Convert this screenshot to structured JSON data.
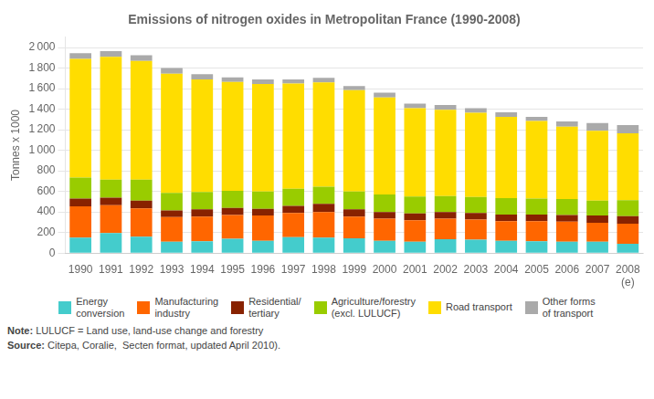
{
  "chart_data": {
    "type": "bar",
    "stacked": true,
    "title": "Emissions of nitrogen oxides in Metropolitan France (1990-2008)",
    "ylabel": "Tonnes x 1000",
    "categories": [
      "1990",
      "1991",
      "1992",
      "1993",
      "1994",
      "1995",
      "1996",
      "1997",
      "1998",
      "1999",
      "2000",
      "2001",
      "2002",
      "2003",
      "2004",
      "2005",
      "2006",
      "2007",
      "2008"
    ],
    "series": [
      {
        "name": "Energy\nconversion",
        "color": "#44CCCC",
        "values": [
          150,
          195,
          160,
          110,
          115,
          140,
          120,
          155,
          150,
          145,
          120,
          110,
          135,
          130,
          120,
          115,
          110,
          110,
          90
        ]
      },
      {
        "name": "Manufacturing\nindustry",
        "color": "#FF6600",
        "values": [
          305,
          270,
          275,
          240,
          240,
          230,
          245,
          235,
          250,
          210,
          215,
          210,
          200,
          195,
          190,
          195,
          195,
          185,
          195
        ]
      },
      {
        "name": "Residential/\ntertiary",
        "color": "#882200",
        "values": [
          75,
          75,
          75,
          65,
          70,
          70,
          65,
          70,
          80,
          70,
          65,
          65,
          65,
          65,
          65,
          65,
          65,
          70,
          75
        ]
      },
      {
        "name": "Agriculture/forestry\n(excl. LULUCF)",
        "color": "#99CC00",
        "values": [
          205,
          175,
          205,
          170,
          170,
          165,
          170,
          165,
          165,
          175,
          170,
          165,
          155,
          155,
          160,
          155,
          155,
          145,
          155
        ]
      },
      {
        "name": "Road transport",
        "color": "#FFDD00",
        "values": [
          1155,
          1195,
          1155,
          1160,
          1095,
          1060,
          1045,
          1025,
          1015,
          985,
          945,
          860,
          840,
          820,
          790,
          755,
          705,
          680,
          650
        ]
      },
      {
        "name": "Other forms\nof transport",
        "color": "#AAAAAA",
        "values": [
          55,
          55,
          55,
          55,
          50,
          45,
          45,
          40,
          45,
          40,
          45,
          45,
          45,
          45,
          45,
          40,
          50,
          75,
          80
        ]
      }
    ],
    "ylim": [
      0,
      2100
    ],
    "yticks": [
      0,
      200,
      400,
      600,
      800,
      {
        "value": 1000,
        "label": "1 000"
      },
      {
        "value": 1200,
        "label": "1 200"
      },
      {
        "value": 1400,
        "label": "1 400"
      },
      {
        "value": 1600,
        "label": "1 600"
      },
      {
        "value": 1800,
        "label": "1 800"
      },
      {
        "value": 2000,
        "label": "2 000"
      }
    ],
    "grid": true,
    "legend": "bottom",
    "annotations": [
      {
        "text": "(e)",
        "x": "2008"
      },
      {
        "text": "Note: LULUCF = Land use, land-use change and forestry"
      },
      {
        "text": "Source: Citepa, Coralie,  Secten format, updated April 2010)."
      }
    ]
  }
}
